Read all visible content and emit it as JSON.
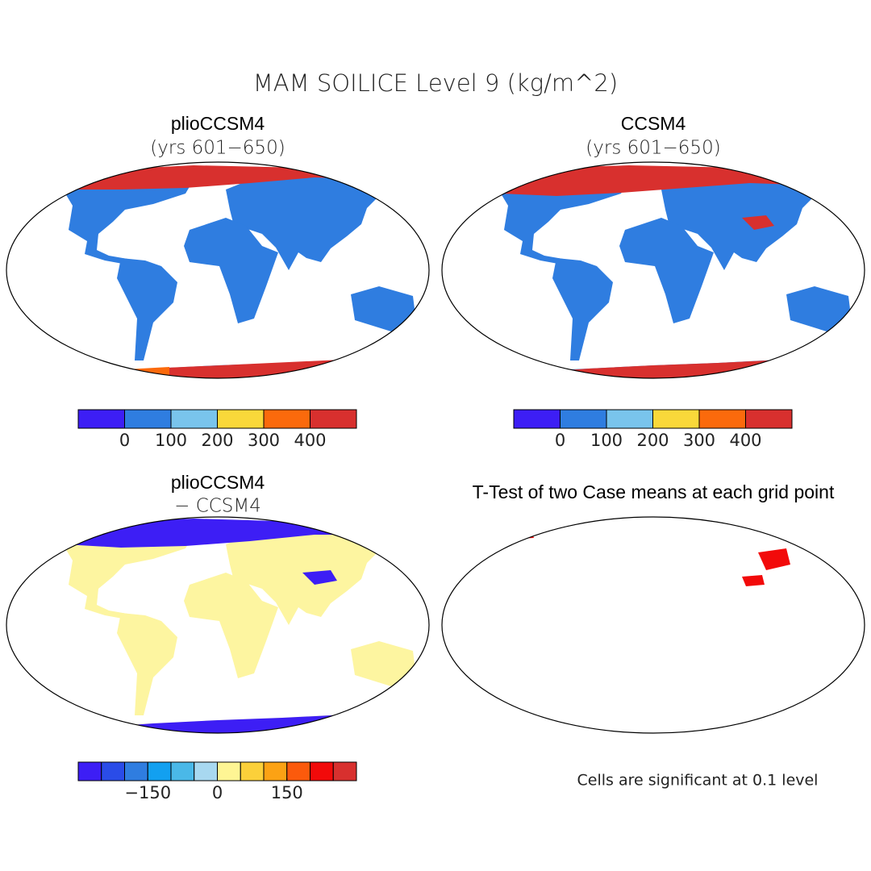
{
  "title": "MAM SOILICE Level 9 (kg/m^2)",
  "panels": [
    {
      "title": "plioCCSM4",
      "subtitle": "(yrs 601−650)",
      "colorbar": {
        "range": [
          -100,
          500
        ],
        "colors": [
          "#3d1ef5",
          "#2f7de0",
          "#79c4ec",
          "#f9d83a",
          "#fb6a0c",
          "#d8302e"
        ],
        "ticks": [
          0,
          100,
          200,
          300,
          400
        ]
      }
    },
    {
      "title": "CCSM4",
      "subtitle": "(yrs 601−650)",
      "colorbar": {
        "range": [
          -100,
          500
        ],
        "colors": [
          "#3d1ef5",
          "#2f7de0",
          "#79c4ec",
          "#f9d83a",
          "#fb6a0c",
          "#d8302e"
        ],
        "ticks": [
          0,
          100,
          200,
          300,
          400
        ]
      }
    },
    {
      "title": "plioCCSM4",
      "subtitle": "− CCSM4",
      "colorbar": {
        "range": [
          -300,
          300
        ],
        "colors": [
          "#3d1ef5",
          "#2a4ce8",
          "#2f7de0",
          "#12a0f0",
          "#4ab8e8",
          "#a8d8f0",
          "#fef594",
          "#fbd03a",
          "#fca214",
          "#fb5a0c",
          "#f20a0a",
          "#d8302e"
        ],
        "ticks": [
          {
            "value": -150,
            "label": "−150"
          },
          0,
          150
        ]
      }
    },
    {
      "title": "T-Test of two Case means at each grid point",
      "note": "Cells are significant at 0.1 level"
    }
  ]
}
